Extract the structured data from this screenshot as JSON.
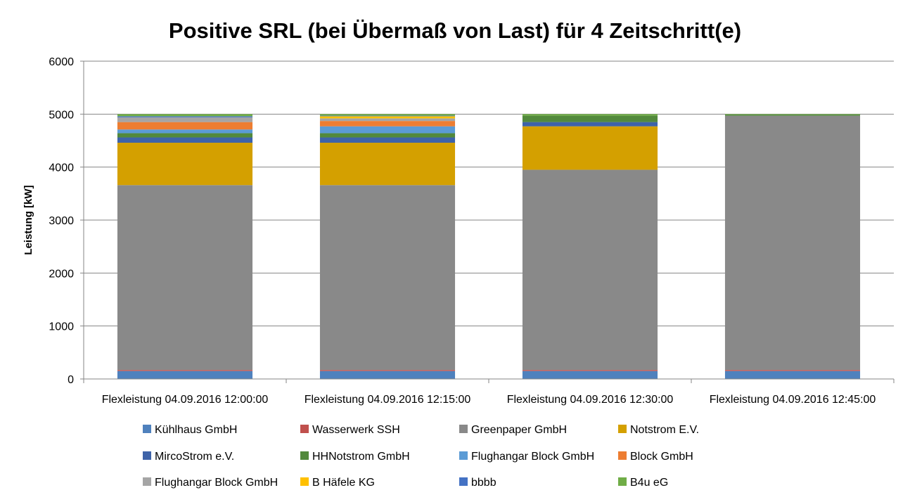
{
  "chart_data": {
    "type": "bar",
    "stacked": true,
    "title": "Positive SRL (bei Übermaß von Last) für 4 Zeitschritt(e)",
    "xlabel": "",
    "ylabel": "Leistung [kW]",
    "ylim": [
      0,
      6000
    ],
    "yticks": [
      0,
      1000,
      2000,
      3000,
      4000,
      5000,
      6000
    ],
    "grid": true,
    "legend_position": "bottom",
    "categories": [
      "Flexleistung 04.09.2016 12:00:00",
      "Flexleistung 04.09.2016 12:15:00",
      "Flexleistung 04.09.2016 12:30:00",
      "Flexleistung 04.09.2016 12:45:00"
    ],
    "series": [
      {
        "name": "Kühlhaus GmbH",
        "color": "#4F81BD",
        "values": [
          150,
          150,
          150,
          150
        ]
      },
      {
        "name": "Wasserwerk SSH",
        "color": "#C0504D",
        "values": [
          20,
          20,
          20,
          20
        ]
      },
      {
        "name": "Greenpaper GmbH",
        "color": "#898989",
        "values": [
          3490,
          3490,
          3780,
          4800
        ]
      },
      {
        "name": "Notstrom E.V.",
        "color": "#D4A000",
        "values": [
          800,
          800,
          820,
          0
        ]
      },
      {
        "name": "MircoStrom e.V.",
        "color": "#3E63A8",
        "values": [
          100,
          100,
          80,
          0
        ]
      },
      {
        "name": "HHNotstrom GmbH",
        "color": "#52893C",
        "values": [
          80,
          80,
          120,
          20
        ]
      },
      {
        "name": "Flughangar Block GmbH",
        "color": "#5B9BD5",
        "values": [
          70,
          130,
          0,
          0
        ]
      },
      {
        "name": "Block GmbH",
        "color": "#ED7D31",
        "values": [
          140,
          100,
          0,
          0
        ]
      },
      {
        "name": "Flughangar Block GmbH",
        "color": "#A5A5A5",
        "values": [
          90,
          50,
          0,
          0
        ]
      },
      {
        "name": "B Häfele KG",
        "color": "#FFC000",
        "values": [
          0,
          40,
          0,
          0
        ]
      },
      {
        "name": "bbbb",
        "color": "#4472C4",
        "values": [
          20,
          10,
          0,
          0
        ]
      },
      {
        "name": "B4u eG",
        "color": "#70AD47",
        "values": [
          40,
          30,
          30,
          10
        ]
      }
    ]
  }
}
